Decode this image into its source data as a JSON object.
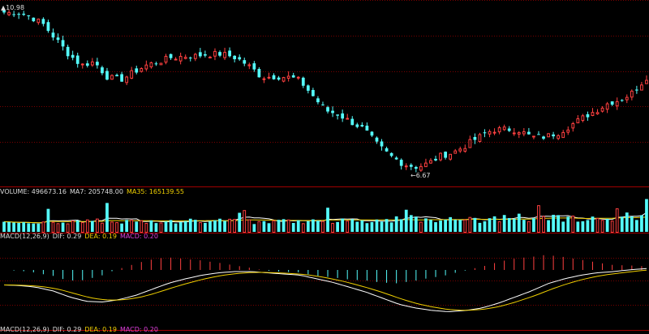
{
  "colors": {
    "background": "#000000",
    "up": "#ff4040",
    "down": "#54fcfc",
    "grid": "#7a0000",
    "ma7": "#ffffff",
    "ma35": "#f0d000",
    "dif": "#ffffff",
    "dea": "#f0d000",
    "macd": "#e040e0",
    "text": "#dcdcdc"
  },
  "price_panel": {
    "high_marker": "10.98",
    "low_marker": "6.67"
  },
  "volume_panel": {
    "label": "VOLUME: 496673.16",
    "ma7": "MA7: 205748.00",
    "ma35": "MA35: 165139.55"
  },
  "macd_panel": {
    "label": "MACD(12,26,9)",
    "dif": "DIF: 0.29",
    "dea": "DEA: 0.19",
    "macd": "MACD: 0.20"
  },
  "macd_panel_repeat": {
    "label": "MACD(12,26,9)",
    "dif": "DIF: 0.29",
    "dea": "DEA: 0.19",
    "macd": "MACD: 0.20"
  },
  "chart_data": {
    "type": "candlestick",
    "price_trend": [
      10.9,
      10.9,
      10.8,
      10.6,
      10.2,
      9.8,
      9.5,
      9.6,
      9.2,
      9.1,
      9.3,
      9.5,
      9.6,
      9.7,
      9.75,
      9.75,
      9.8,
      9.8,
      9.7,
      9.5,
      9.2,
      9.2,
      9.2,
      9.1,
      8.7,
      8.3,
      8.2,
      8.0,
      7.8,
      7.4,
      7.1,
      6.9,
      6.8,
      6.9,
      7.1,
      7.2,
      7.4,
      7.6,
      7.8,
      7.8,
      7.8,
      7.6,
      7.6,
      7.7,
      7.9,
      8.1,
      8.3,
      8.5,
      8.6,
      8.8,
      9.2
    ],
    "volume_trend": [
      1,
      1.05,
      1.05,
      1.0,
      1.02,
      1.05,
      1.0,
      1.15,
      1.2,
      1.02,
      1.0,
      1.05,
      1.0,
      1.02,
      1.0,
      1.1,
      1.1,
      1.05,
      1.15,
      1.0,
      1.0,
      1.05,
      1.05,
      1.02,
      1.15,
      1.1,
      1.15,
      1.1,
      1.1,
      1.1,
      1.2,
      1.25,
      1.35,
      1.15,
      1.2,
      1.15,
      1.2,
      1.15,
      1.2,
      1.4,
      1.5,
      1.35,
      1.3,
      1.35,
      1.3,
      1.25,
      1.25,
      1.25,
      1.25,
      1.35,
      1.5
    ],
    "dif_trend": [
      0.02,
      0.01,
      -0.02,
      -0.08,
      -0.18,
      -0.25,
      -0.26,
      -0.22,
      -0.15,
      -0.05,
      0.05,
      0.12,
      0.18,
      0.22,
      0.24,
      0.24,
      0.22,
      0.2,
      0.18,
      0.12,
      0.06,
      -0.02,
      -0.1,
      -0.2,
      -0.3,
      -0.36,
      -0.4,
      -0.42,
      -0.4,
      -0.36,
      -0.28,
      -0.18,
      -0.08,
      0.04,
      0.12,
      0.18,
      0.22,
      0.24,
      0.27,
      0.29
    ]
  }
}
